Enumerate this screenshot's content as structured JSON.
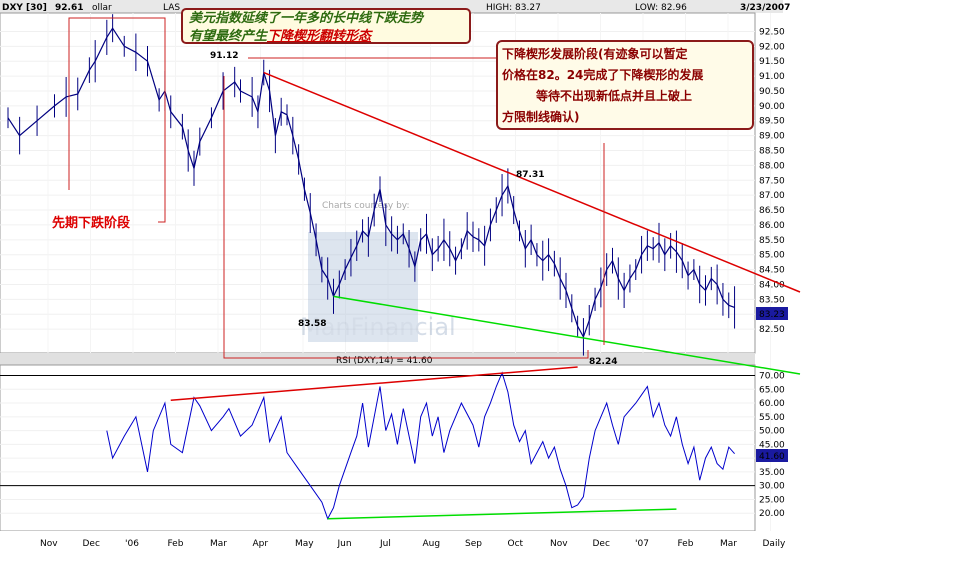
{
  "header": {
    "symbol": "DXY [30]",
    "title_fragment": "ollar",
    "last_label": "LAS",
    "high_label": "HIGH: 83.27",
    "low_label": "LOW: 82.96",
    "date": "3/23/2007",
    "top_value": "92.61"
  },
  "annotations": {
    "main_title_line1": "美元指数延续了一年多的长中线下跌走势",
    "main_title_line2_prefix": "有望最终产生",
    "main_title_line2_link": "下降楔形翻转形态",
    "wedge_note_line1": "下降楔形发展阶段(有迹象可以暂定",
    "wedge_note_line2": "价格在82。24完成了下降楔形的发展",
    "wedge_note_line3": "等待不出现新低点并且上破上",
    "wedge_note_line4": "方限制线确认)",
    "prior_decline": "先期下跌阶段",
    "watermark_top": "Charts courtesy by:",
    "watermark_bottom": "ManFinancial"
  },
  "price_labels": {
    "p1": "91.12",
    "p2": "87.31",
    "p3": "83.58",
    "p4": "82.24",
    "last_price": "83.23"
  },
  "rsi": {
    "label": "RSI (DXY,14) = 41.60",
    "last_value": "41.60"
  },
  "colors": {
    "price_line": "#000080",
    "rsi_line": "#0000cc",
    "resistance": "#dd0000",
    "support": "#00dd00",
    "annotation_line": "#cc2222"
  },
  "chart_data": [
    {
      "type": "line",
      "subtype": "price-bars",
      "ylim": [
        82.0,
        92.75
      ],
      "yticks": [
        82.5,
        83.0,
        83.5,
        84.0,
        84.5,
        85.0,
        85.5,
        86.0,
        86.5,
        87.0,
        87.5,
        88.0,
        88.5,
        89.0,
        89.5,
        90.0,
        90.5,
        91.0,
        91.5,
        92.0,
        92.5
      ],
      "x_categories": [
        "Nov",
        "Dec",
        "'06",
        "Feb",
        "Mar",
        "Apr",
        "May",
        "Jun",
        "Jul",
        "Aug",
        "Sep",
        "Oct",
        "Nov",
        "Dec",
        "'07",
        "Feb",
        "Mar",
        "Daily"
      ],
      "series": [
        {
          "points": [
            [
              0,
              89.6
            ],
            [
              2,
              89.0
            ],
            [
              5,
              89.5
            ],
            [
              8,
              90.0
            ],
            [
              10,
              90.3
            ],
            [
              12,
              90.4
            ],
            [
              14,
              91.2
            ],
            [
              15,
              91.5
            ],
            [
              17,
              92.3
            ],
            [
              18,
              92.61
            ],
            [
              20,
              92.0
            ],
            [
              22,
              91.8
            ],
            [
              24,
              91.5
            ],
            [
              26,
              90.2
            ],
            [
              27,
              90.5
            ],
            [
              28,
              89.8
            ],
            [
              30,
              89.3
            ],
            [
              31,
              88.5
            ],
            [
              32,
              87.9
            ],
            [
              33,
              88.8
            ],
            [
              35,
              89.6
            ],
            [
              37,
              90.5
            ],
            [
              39,
              90.8
            ],
            [
              40,
              90.5
            ],
            [
              42,
              90.3
            ],
            [
              43,
              89.8
            ],
            [
              44,
              91.12
            ],
            [
              45,
              90.5
            ],
            [
              46,
              89.0
            ],
            [
              47,
              89.8
            ],
            [
              48,
              89.7
            ],
            [
              49,
              89.0
            ],
            [
              50,
              88.2
            ],
            [
              51,
              87.2
            ],
            [
              52,
              86.4
            ],
            [
              53,
              85.5
            ],
            [
              54,
              84.5
            ],
            [
              55,
              84.2
            ],
            [
              56,
              83.6
            ],
            [
              57,
              84.0
            ],
            [
              58,
              84.5
            ],
            [
              59,
              84.9
            ],
            [
              60,
              85.3
            ],
            [
              61,
              85.8
            ],
            [
              62,
              85.6
            ],
            [
              63,
              86.5
            ],
            [
              64,
              87.2
            ],
            [
              65,
              86.0
            ],
            [
              66,
              85.7
            ],
            [
              67,
              85.5
            ],
            [
              68,
              85.7
            ],
            [
              69,
              85.2
            ],
            [
              70,
              84.6
            ],
            [
              71,
              85.5
            ],
            [
              72,
              85.7
            ],
            [
              73,
              85.0
            ],
            [
              74,
              85.2
            ],
            [
              75,
              85.5
            ],
            [
              76,
              85.2
            ],
            [
              77,
              84.8
            ],
            [
              78,
              85.2
            ],
            [
              79,
              85.8
            ],
            [
              80,
              85.6
            ],
            [
              81,
              85.5
            ],
            [
              82,
              85.3
            ],
            [
              83,
              86.0
            ],
            [
              84,
              86.5
            ],
            [
              85,
              87.0
            ],
            [
              86,
              87.31
            ],
            [
              87,
              86.5
            ],
            [
              88,
              85.8
            ],
            [
              89,
              85.2
            ],
            [
              90,
              85.5
            ],
            [
              91,
              85.0
            ],
            [
              92,
              84.8
            ],
            [
              93,
              85.0
            ],
            [
              94,
              84.7
            ],
            [
              95,
              84.2
            ],
            [
              96,
              83.8
            ],
            [
              97,
              83.2
            ],
            [
              98,
              82.6
            ],
            [
              99,
              82.24
            ],
            [
              100,
              82.8
            ],
            [
              101,
              83.5
            ],
            [
              102,
              83.9
            ],
            [
              103,
              84.5
            ],
            [
              104,
              84.8
            ],
            [
              105,
              84.2
            ],
            [
              106,
              83.8
            ],
            [
              107,
              84.2
            ],
            [
              108,
              84.5
            ],
            [
              109,
              85.0
            ],
            [
              110,
              85.3
            ],
            [
              111,
              85.2
            ],
            [
              112,
              85.4
            ],
            [
              113,
              85.0
            ],
            [
              114,
              85.3
            ],
            [
              115,
              85.1
            ],
            [
              116,
              84.8
            ],
            [
              117,
              84.3
            ],
            [
              118,
              84.5
            ],
            [
              119,
              84.0
            ],
            [
              120,
              83.8
            ],
            [
              121,
              84.2
            ],
            [
              122,
              84.0
            ],
            [
              123,
              83.5
            ],
            [
              124,
              83.3
            ],
            [
              125,
              83.23
            ]
          ]
        }
      ],
      "resistance_line": [
        [
          44,
          91.12
        ],
        [
          135,
          84.0
        ]
      ],
      "support_line": [
        [
          56,
          83.6
        ],
        [
          135,
          81.6
        ]
      ]
    },
    {
      "type": "line",
      "subtype": "rsi",
      "ylim": [
        15,
        72
      ],
      "yticks": [
        20,
        25,
        30,
        35,
        40,
        45,
        50,
        55,
        60,
        65,
        70
      ],
      "reference_lines": [
        30,
        70
      ],
      "series": [
        {
          "name": "RSI (DXY,14)",
          "points": [
            [
              17,
              50
            ],
            [
              18,
              40
            ],
            [
              20,
              48
            ],
            [
              22,
              55
            ],
            [
              24,
              35
            ],
            [
              25,
              50
            ],
            [
              27,
              60
            ],
            [
              28,
              45
            ],
            [
              30,
              42
            ],
            [
              32,
              62
            ],
            [
              33,
              59
            ],
            [
              35,
              50
            ],
            [
              37,
              55
            ],
            [
              38,
              58
            ],
            [
              40,
              48
            ],
            [
              42,
              52
            ],
            [
              44,
              62
            ],
            [
              45,
              46
            ],
            [
              47,
              55
            ],
            [
              48,
              42
            ],
            [
              50,
              36
            ],
            [
              52,
              30
            ],
            [
              54,
              24
            ],
            [
              55,
              18
            ],
            [
              56,
              22
            ],
            [
              57,
              30
            ],
            [
              59,
              42
            ],
            [
              60,
              48
            ],
            [
              61,
              60
            ],
            [
              62,
              44
            ],
            [
              63,
              55
            ],
            [
              64,
              66
            ],
            [
              65,
              50
            ],
            [
              66,
              56
            ],
            [
              67,
              45
            ],
            [
              68,
              58
            ],
            [
              69,
              48
            ],
            [
              70,
              38
            ],
            [
              71,
              55
            ],
            [
              72,
              60
            ],
            [
              73,
              48
            ],
            [
              74,
              55
            ],
            [
              75,
              42
            ],
            [
              76,
              50
            ],
            [
              78,
              60
            ],
            [
              80,
              52
            ],
            [
              81,
              44
            ],
            [
              82,
              55
            ],
            [
              83,
              60
            ],
            [
              84,
              66
            ],
            [
              85,
              71
            ],
            [
              86,
              64
            ],
            [
              87,
              52
            ],
            [
              88,
              46
            ],
            [
              89,
              50
            ],
            [
              90,
              38
            ],
            [
              92,
              46
            ],
            [
              93,
              40
            ],
            [
              94,
              44
            ],
            [
              95,
              36
            ],
            [
              96,
              30
            ],
            [
              97,
              22
            ],
            [
              98,
              23
            ],
            [
              99,
              26
            ],
            [
              100,
              40
            ],
            [
              101,
              50
            ],
            [
              102,
              55
            ],
            [
              103,
              60
            ],
            [
              104,
              52
            ],
            [
              105,
              45
            ],
            [
              106,
              55
            ],
            [
              108,
              60
            ],
            [
              109,
              63
            ],
            [
              110,
              66
            ],
            [
              111,
              55
            ],
            [
              112,
              60
            ],
            [
              113,
              52
            ],
            [
              114,
              48
            ],
            [
              115,
              55
            ],
            [
              116,
              45
            ],
            [
              117,
              38
            ],
            [
              118,
              44
            ],
            [
              119,
              32
            ],
            [
              120,
              40
            ],
            [
              121,
              44
            ],
            [
              122,
              38
            ],
            [
              123,
              36
            ],
            [
              124,
              44
            ],
            [
              125,
              41.6
            ]
          ]
        }
      ],
      "resistance_line": [
        [
          28,
          61
        ],
        [
          98,
          71
        ]
      ],
      "support_line": [
        [
          55,
          18
        ],
        [
          115,
          21.5
        ]
      ]
    }
  ]
}
